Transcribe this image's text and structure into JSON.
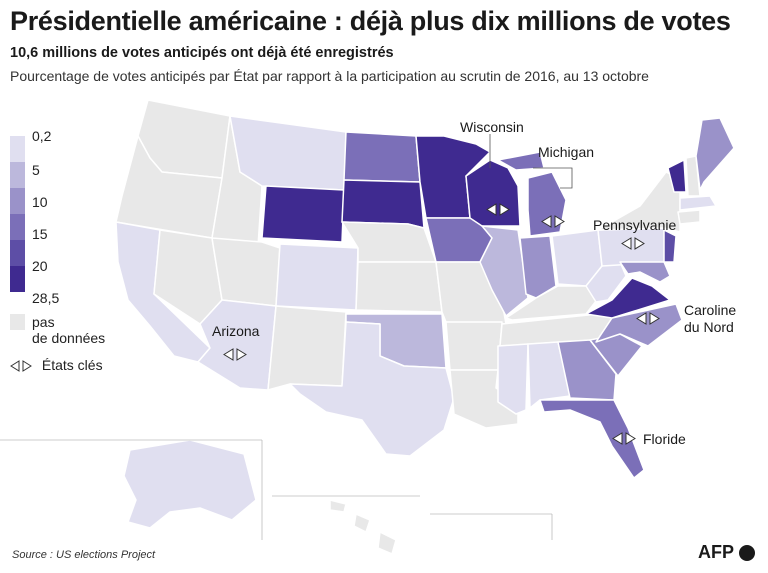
{
  "title": "Présidentielle américaine : déjà plus dix millions de votes",
  "subtitle": "10,6 millions de votes anticipés ont déjà été enregistrés",
  "description": "Pourcentage de votes anticipés par État par rapport à la participation au scrutin de 2016,  au 13 octobre",
  "legend": {
    "items": [
      {
        "label": "0,2",
        "color": "#e0dff0"
      },
      {
        "label": "5",
        "color": "#bcb8dc"
      },
      {
        "label": "10",
        "color": "#9a92c9"
      },
      {
        "label": "15",
        "color": "#7b6fb8"
      },
      {
        "label": "20",
        "color": "#5d4ea6"
      },
      {
        "label": "28,5",
        "color": "#3f2a90"
      }
    ],
    "no_data": {
      "label_line1": "pas",
      "label_line2": "de données",
      "color": "#e8e8e8"
    },
    "key_states": "États clés"
  },
  "key_state_labels": {
    "wisconsin": "Wisconsin",
    "michigan": "Michigan",
    "pennsylvania": "Pennsylvanie",
    "arizona": "Arizona",
    "north_carolina_line1": "Caroline",
    "north_carolina_line2": "du Nord",
    "florida": "Floride"
  },
  "source": "Source : US elections Project",
  "logo": "AFP"
}
